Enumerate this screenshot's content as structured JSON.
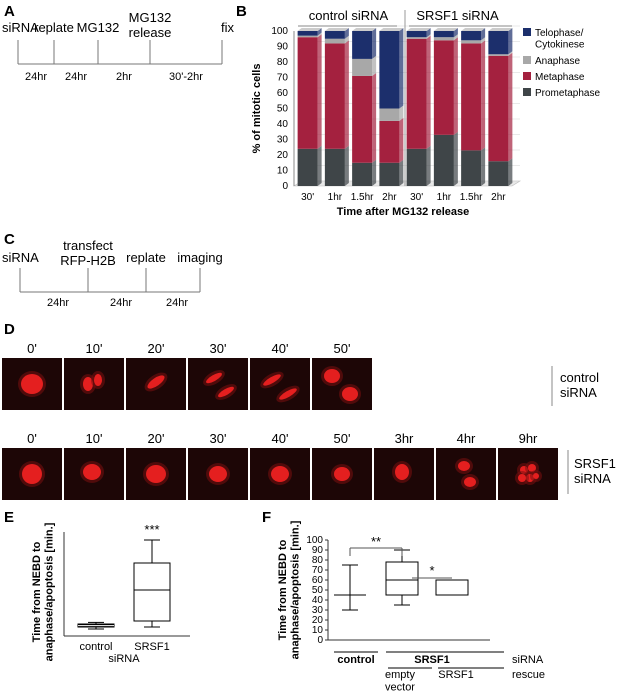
{
  "panels": {
    "A": "A",
    "B": "B",
    "C": "C",
    "D": "D",
    "E": "E",
    "F": "F"
  },
  "timelineA": {
    "events": [
      "siRNA",
      "replate",
      "MG132",
      "MG132\nrelease",
      "fix"
    ],
    "intervals": [
      "24hr",
      "24hr",
      "2hr",
      "30'-2hr"
    ]
  },
  "timelineC": {
    "events": [
      "siRNA",
      "transfect\nRFP-H2B",
      "replate",
      "imaging"
    ],
    "intervals": [
      "24hr",
      "24hr",
      "24hr"
    ]
  },
  "chart_data": [
    {
      "type": "bar",
      "stacked": true,
      "groups": [
        "control siRNA",
        "SRSF1 siRNA"
      ],
      "categories": [
        "30'",
        "1hr",
        "1.5hr",
        "2hr",
        "30'",
        "1hr",
        "1.5hr",
        "2hr"
      ],
      "series": [
        {
          "name": "Prometaphase",
          "values": [
            24,
            24,
            15,
            15,
            24,
            33,
            23,
            16
          ]
        },
        {
          "name": "Metaphase",
          "values": [
            72,
            68,
            56,
            27,
            71,
            61,
            69,
            68
          ]
        },
        {
          "name": "Anaphase",
          "values": [
            1,
            3,
            11,
            8,
            1,
            2,
            2,
            1
          ]
        },
        {
          "name": "Telophase/\nCytokinese",
          "values": [
            3,
            5,
            18,
            50,
            4,
            4,
            6,
            15
          ]
        }
      ],
      "ylabel": "% of mitotic cells",
      "xlabel": "Time after MG132 release",
      "ylim": [
        0,
        100
      ],
      "yticks": [
        0,
        10,
        20,
        30,
        40,
        50,
        60,
        70,
        80,
        90,
        100
      ],
      "colors": {
        "Prometaphase": "#3f4548",
        "Metaphase": "#a4213f",
        "Anaphase": "#a8a8a8",
        "Telophase/\nCytokinese": "#1c2f6c"
      },
      "legend": "right"
    },
    {
      "type": "boxplot",
      "categories": [
        "control",
        "SRSF1"
      ],
      "xlabel": "siRNA",
      "ylabel": "Time from NEBD to\nanaphase/apoptosis [min.]",
      "ylim": [
        0,
        500
      ],
      "boxes": [
        {
          "min": 35,
          "q1": 45,
          "median": 52,
          "q3": 60,
          "max": 68
        },
        {
          "min": 45,
          "q1": 75,
          "median": 230,
          "q3": 365,
          "max": 480
        }
      ],
      "annotation": "***"
    },
    {
      "type": "boxplot",
      "categories": [
        "control",
        "empty\nvector",
        "SRSF1"
      ],
      "group_label": "SRSF1",
      "row_labels": [
        "siRNA",
        "rescue"
      ],
      "ylabel": "Time from NEBD to\nanaphase/apoptosis [min.]",
      "ylim": [
        0,
        100
      ],
      "yticks": [
        0,
        10,
        20,
        30,
        40,
        50,
        60,
        70,
        80,
        90,
        100
      ],
      "boxes": [
        {
          "min": 30,
          "q1": 45,
          "median": 45,
          "q3": 45,
          "max": 75
        },
        {
          "min": 35,
          "q1": 45,
          "median": 60,
          "q3": 78,
          "max": 90
        },
        {
          "min": 45,
          "q1": 45,
          "median": 45,
          "q3": 60,
          "max": 60
        }
      ],
      "annotations": [
        "**",
        "*"
      ]
    }
  ],
  "panelD": {
    "row1_times": [
      "0'",
      "10'",
      "20'",
      "30'",
      "40'",
      "50'"
    ],
    "row1_label": "control\nsiRNA",
    "row2_times": [
      "0'",
      "10'",
      "20'",
      "30'",
      "40'",
      "50'",
      "3hr",
      "4hr",
      "9hr"
    ],
    "row2_label": "SRSF1\nsiRNA"
  }
}
